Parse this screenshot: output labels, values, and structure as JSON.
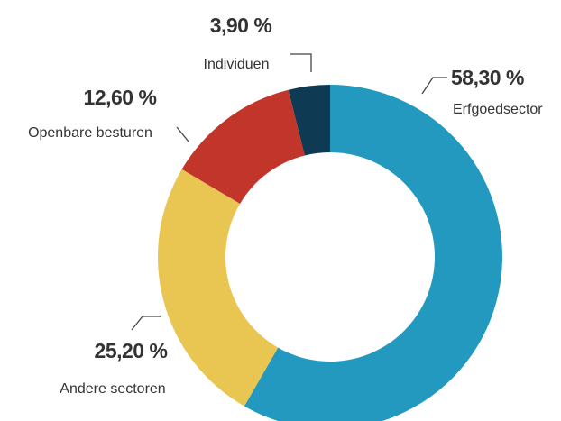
{
  "chart_data": {
    "type": "donut",
    "categories": [
      "Erfgoedsector",
      "Andere sectoren",
      "Openbare besturen",
      "Individuen"
    ],
    "values": [
      58.3,
      25.2,
      12.6,
      3.9
    ],
    "value_labels": [
      "58,30 %",
      "25,20 %",
      "12,60 %",
      "3,90 %"
    ],
    "colors": [
      "#2399bf",
      "#e9c552",
      "#c1352b",
      "#0f3a53"
    ]
  }
}
